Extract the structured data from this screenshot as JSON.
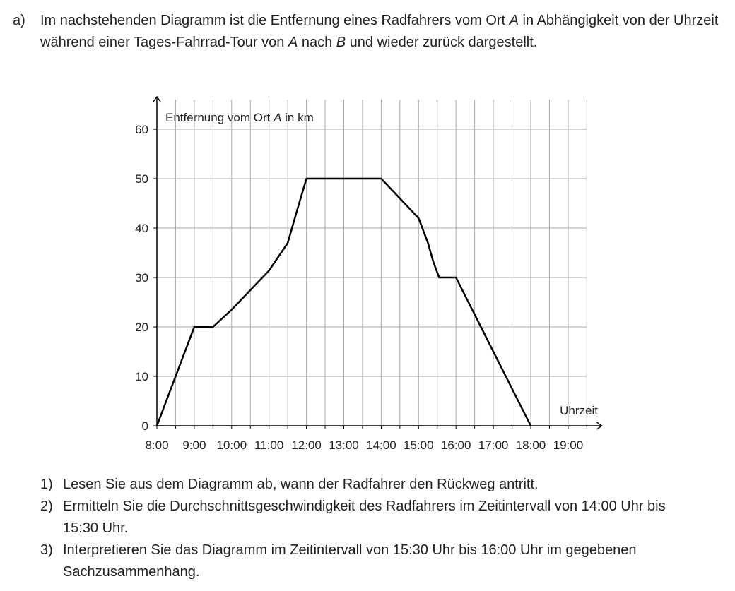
{
  "intro": {
    "label": "a)",
    "parts": [
      "Im nachstehenden Diagramm ist die Entfernung eines Radfahrers vom Ort ",
      "A",
      " in Abhängigkeit von der Uhrzeit während einer Tages-Fahrrad-Tour von ",
      "A",
      " nach ",
      "B",
      " und wieder zurück dargestellt."
    ]
  },
  "chart_data": {
    "type": "line",
    "y_label_parts": [
      "Entfernung vom Ort ",
      "A",
      " in km"
    ],
    "x_label": "Uhrzeit",
    "x": [
      8,
      9,
      9.5,
      10,
      11,
      11.5,
      11.75,
      12,
      13.5,
      14,
      14.5,
      15,
      15.25,
      15.4,
      15.55,
      16,
      18
    ],
    "series": [
      {
        "color": "#000000",
        "values": [
          0,
          20,
          20,
          23.5,
          31.4,
          37,
          43.6,
          50,
          50,
          50,
          46,
          42,
          37,
          33,
          30,
          30,
          0
        ]
      }
    ],
    "xlim": [
      8,
      19.9
    ],
    "ylim": [
      0,
      66
    ],
    "xticks": [
      {
        "value": 8,
        "label": "8:00"
      },
      {
        "value": 9,
        "label": "9:00"
      },
      {
        "value": 10,
        "label": "10:00"
      },
      {
        "value": 11,
        "label": "11:00"
      },
      {
        "value": 12,
        "label": "12:00"
      },
      {
        "value": 13,
        "label": "13:00"
      },
      {
        "value": 14,
        "label": "14:00"
      },
      {
        "value": 15,
        "label": "15:00"
      },
      {
        "value": 16,
        "label": "16:00"
      },
      {
        "value": 17,
        "label": "17:00"
      },
      {
        "value": 18,
        "label": "18:00"
      },
      {
        "value": 19,
        "label": "19:00"
      }
    ],
    "minor_xticks": [
      8.5,
      9.5,
      10.5,
      11.5,
      12.5,
      13.5,
      14.5,
      15.5,
      16.5,
      17.5,
      18.5,
      19.5
    ],
    "yticks": [
      0,
      10,
      20,
      30,
      40,
      50,
      60
    ],
    "grid": true
  },
  "questions": [
    {
      "num": "1)",
      "text": "Lesen Sie aus dem Diagramm ab, wann der Radfahrer den Rückweg antritt."
    },
    {
      "num": "2)",
      "text": "Ermitteln Sie die Durchschnittsgeschwindigkeit des Radfahrers im Zeitintervall von 14:00 Uhr bis 15:30 Uhr."
    },
    {
      "num": "3)",
      "text": "Interpretieren Sie das Diagramm im Zeitintervall von 15:30 Uhr bis 16:00 Uhr im gegebenen Sachzusammenhang."
    }
  ]
}
